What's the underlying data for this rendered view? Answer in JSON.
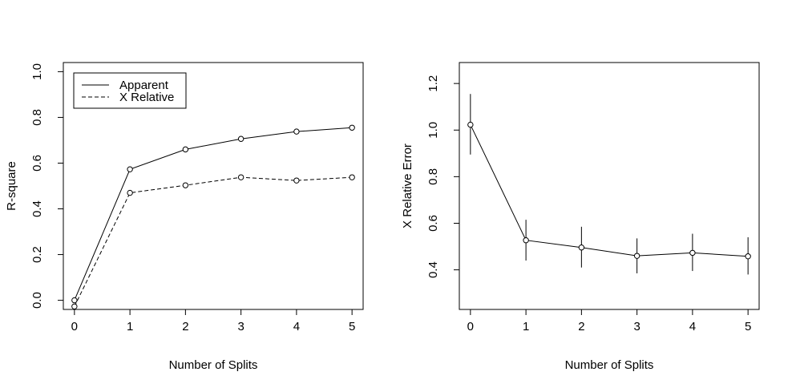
{
  "chart_data": [
    {
      "type": "line",
      "xlabel": "Number of Splits",
      "ylabel": "R-square",
      "x": [
        0,
        1,
        2,
        3,
        4,
        5
      ],
      "xlim": [
        -0.2,
        5.2
      ],
      "ylim": [
        -0.04,
        1.04
      ],
      "xticks": [
        "0",
        "1",
        "2",
        "3",
        "4",
        "5"
      ],
      "yticks": [
        "0.0",
        "0.2",
        "0.4",
        "0.6",
        "0.8",
        "1.0"
      ],
      "legend": {
        "position": "top-left"
      },
      "series": [
        {
          "name": "Apparent",
          "style": "solid",
          "values": [
            0.0,
            0.573,
            0.66,
            0.706,
            0.738,
            0.755
          ]
        },
        {
          "name": "X Relative",
          "style": "dashed",
          "values": [
            -0.027,
            0.47,
            0.503,
            0.538,
            0.524,
            0.538
          ]
        }
      ]
    },
    {
      "type": "line",
      "xlabel": "Number of Splits",
      "ylabel": "X Relative Error",
      "x": [
        0,
        1,
        2,
        3,
        4,
        5
      ],
      "xlim": [
        -0.2,
        5.2
      ],
      "ylim": [
        0.23,
        1.29
      ],
      "xticks": [
        "0",
        "1",
        "2",
        "3",
        "4",
        "5"
      ],
      "yticks": [
        "0.4",
        "0.6",
        "0.8",
        "1.0",
        "1.2"
      ],
      "series": [
        {
          "values": [
            1.023,
            0.527,
            0.496,
            0.46,
            0.473,
            0.458
          ],
          "error_low": [
            0.895,
            0.44,
            0.41,
            0.385,
            0.395,
            0.38
          ],
          "error_high": [
            1.155,
            0.615,
            0.585,
            0.535,
            0.555,
            0.54
          ]
        }
      ]
    }
  ]
}
